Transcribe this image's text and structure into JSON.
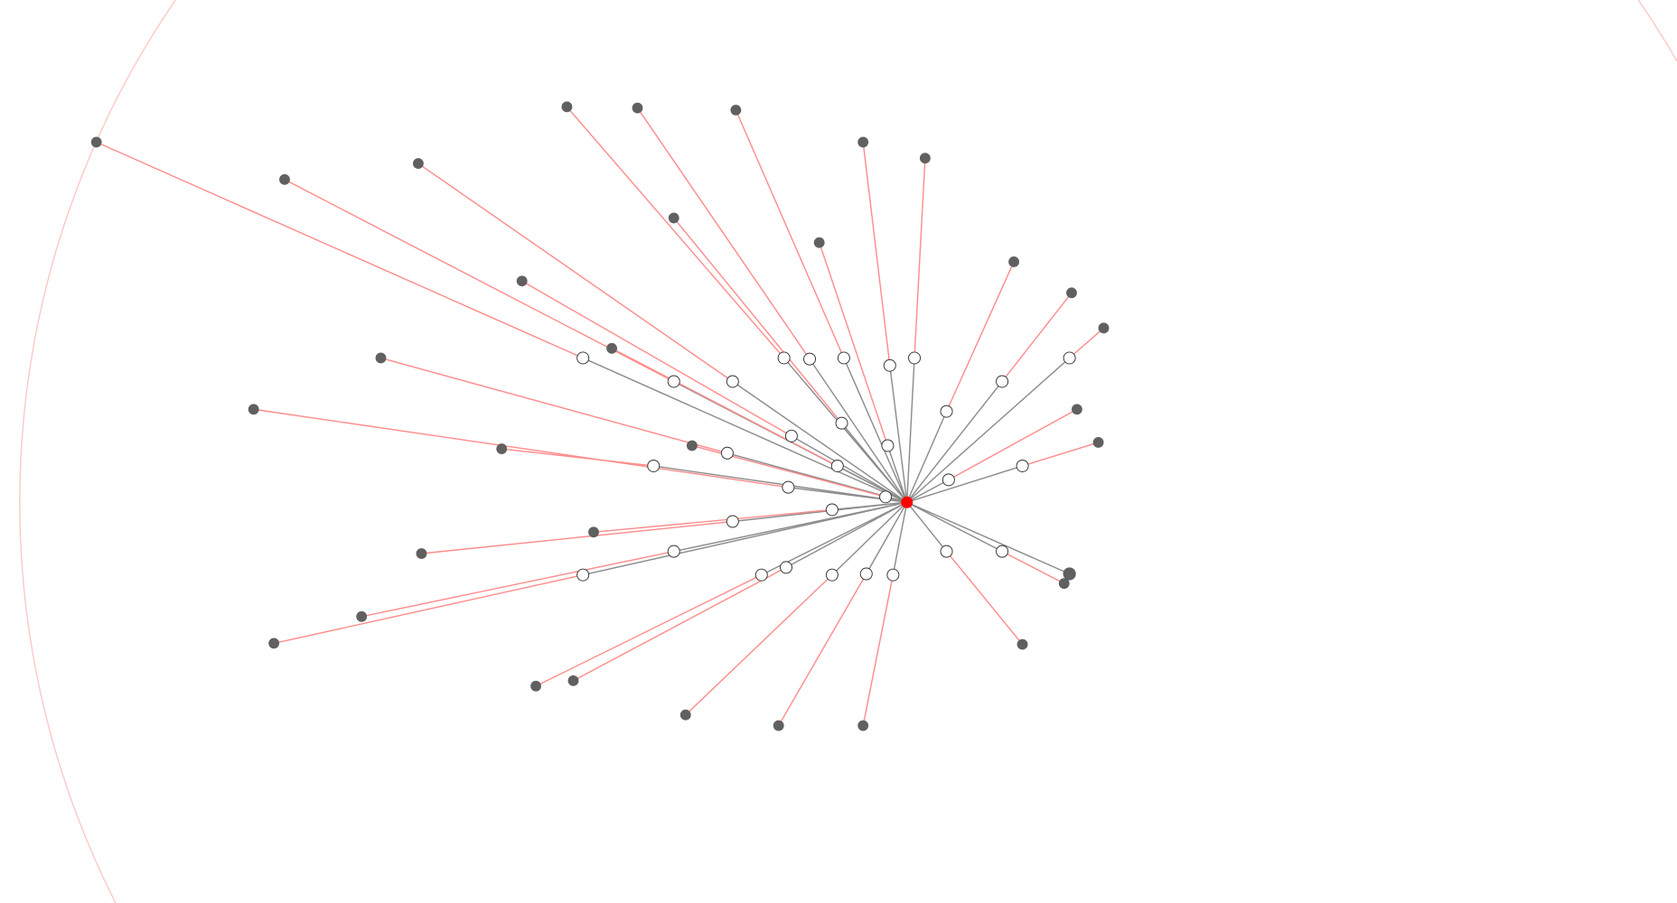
{
  "graph": {
    "colors": {
      "center": "#ff0000",
      "inner_node_fill": "#ffffff",
      "inner_node_stroke": "#333333",
      "outer_node": "#606060",
      "inner_edge": "#8c8c8c",
      "outer_edge": "#ff8c8c",
      "boundary_ring": "#ffc8c8"
    },
    "center": {
      "id": "root",
      "type": "center"
    },
    "branch_count": 33,
    "direct_outer_count": 1
  }
}
